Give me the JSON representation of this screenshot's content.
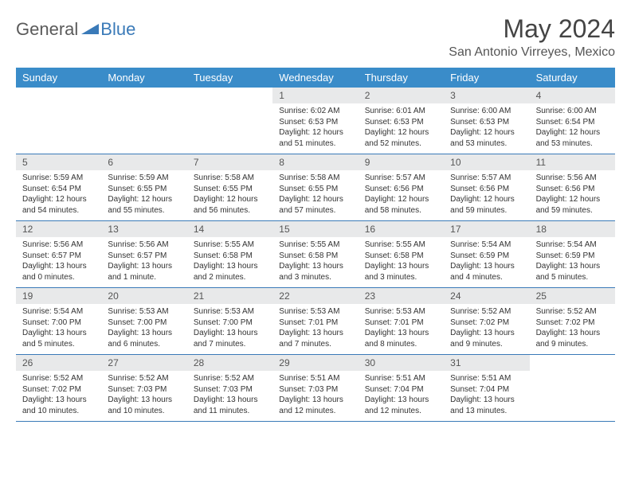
{
  "logo": {
    "part1": "General",
    "part2": "Blue"
  },
  "title": "May 2024",
  "location": "San Antonio Virreyes, Mexico",
  "day_names": [
    "Sunday",
    "Monday",
    "Tuesday",
    "Wednesday",
    "Thursday",
    "Friday",
    "Saturday"
  ],
  "colors": {
    "header_bg": "#3a8cc9",
    "accent": "#3a7ab8",
    "daynum_bg": "#e8e9ea",
    "text": "#333333"
  },
  "weeks": [
    [
      {
        "n": "",
        "empty": true
      },
      {
        "n": "",
        "empty": true
      },
      {
        "n": "",
        "empty": true
      },
      {
        "n": "1",
        "sr": "6:02 AM",
        "ss": "6:53 PM",
        "dl": "12 hours and 51 minutes."
      },
      {
        "n": "2",
        "sr": "6:01 AM",
        "ss": "6:53 PM",
        "dl": "12 hours and 52 minutes."
      },
      {
        "n": "3",
        "sr": "6:00 AM",
        "ss": "6:53 PM",
        "dl": "12 hours and 53 minutes."
      },
      {
        "n": "4",
        "sr": "6:00 AM",
        "ss": "6:54 PM",
        "dl": "12 hours and 53 minutes."
      }
    ],
    [
      {
        "n": "5",
        "sr": "5:59 AM",
        "ss": "6:54 PM",
        "dl": "12 hours and 54 minutes."
      },
      {
        "n": "6",
        "sr": "5:59 AM",
        "ss": "6:55 PM",
        "dl": "12 hours and 55 minutes."
      },
      {
        "n": "7",
        "sr": "5:58 AM",
        "ss": "6:55 PM",
        "dl": "12 hours and 56 minutes."
      },
      {
        "n": "8",
        "sr": "5:58 AM",
        "ss": "6:55 PM",
        "dl": "12 hours and 57 minutes."
      },
      {
        "n": "9",
        "sr": "5:57 AM",
        "ss": "6:56 PM",
        "dl": "12 hours and 58 minutes."
      },
      {
        "n": "10",
        "sr": "5:57 AM",
        "ss": "6:56 PM",
        "dl": "12 hours and 59 minutes."
      },
      {
        "n": "11",
        "sr": "5:56 AM",
        "ss": "6:56 PM",
        "dl": "12 hours and 59 minutes."
      }
    ],
    [
      {
        "n": "12",
        "sr": "5:56 AM",
        "ss": "6:57 PM",
        "dl": "13 hours and 0 minutes."
      },
      {
        "n": "13",
        "sr": "5:56 AM",
        "ss": "6:57 PM",
        "dl": "13 hours and 1 minute."
      },
      {
        "n": "14",
        "sr": "5:55 AM",
        "ss": "6:58 PM",
        "dl": "13 hours and 2 minutes."
      },
      {
        "n": "15",
        "sr": "5:55 AM",
        "ss": "6:58 PM",
        "dl": "13 hours and 3 minutes."
      },
      {
        "n": "16",
        "sr": "5:55 AM",
        "ss": "6:58 PM",
        "dl": "13 hours and 3 minutes."
      },
      {
        "n": "17",
        "sr": "5:54 AM",
        "ss": "6:59 PM",
        "dl": "13 hours and 4 minutes."
      },
      {
        "n": "18",
        "sr": "5:54 AM",
        "ss": "6:59 PM",
        "dl": "13 hours and 5 minutes."
      }
    ],
    [
      {
        "n": "19",
        "sr": "5:54 AM",
        "ss": "7:00 PM",
        "dl": "13 hours and 5 minutes."
      },
      {
        "n": "20",
        "sr": "5:53 AM",
        "ss": "7:00 PM",
        "dl": "13 hours and 6 minutes."
      },
      {
        "n": "21",
        "sr": "5:53 AM",
        "ss": "7:00 PM",
        "dl": "13 hours and 7 minutes."
      },
      {
        "n": "22",
        "sr": "5:53 AM",
        "ss": "7:01 PM",
        "dl": "13 hours and 7 minutes."
      },
      {
        "n": "23",
        "sr": "5:53 AM",
        "ss": "7:01 PM",
        "dl": "13 hours and 8 minutes."
      },
      {
        "n": "24",
        "sr": "5:52 AM",
        "ss": "7:02 PM",
        "dl": "13 hours and 9 minutes."
      },
      {
        "n": "25",
        "sr": "5:52 AM",
        "ss": "7:02 PM",
        "dl": "13 hours and 9 minutes."
      }
    ],
    [
      {
        "n": "26",
        "sr": "5:52 AM",
        "ss": "7:02 PM",
        "dl": "13 hours and 10 minutes."
      },
      {
        "n": "27",
        "sr": "5:52 AM",
        "ss": "7:03 PM",
        "dl": "13 hours and 10 minutes."
      },
      {
        "n": "28",
        "sr": "5:52 AM",
        "ss": "7:03 PM",
        "dl": "13 hours and 11 minutes."
      },
      {
        "n": "29",
        "sr": "5:51 AM",
        "ss": "7:03 PM",
        "dl": "13 hours and 12 minutes."
      },
      {
        "n": "30",
        "sr": "5:51 AM",
        "ss": "7:04 PM",
        "dl": "13 hours and 12 minutes."
      },
      {
        "n": "31",
        "sr": "5:51 AM",
        "ss": "7:04 PM",
        "dl": "13 hours and 13 minutes."
      },
      {
        "n": "",
        "empty": true
      }
    ]
  ],
  "labels": {
    "sunrise": "Sunrise:",
    "sunset": "Sunset:",
    "daylight": "Daylight:"
  }
}
